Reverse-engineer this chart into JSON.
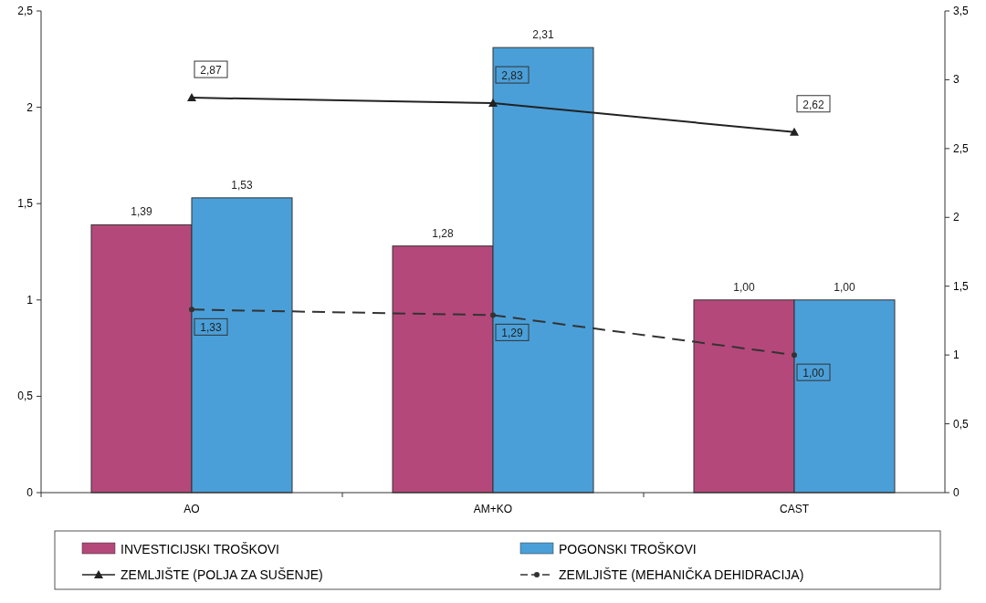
{
  "chart_data": {
    "type": "bar",
    "categories": [
      "AO",
      "AM+KO",
      "CAST"
    ],
    "series": [
      {
        "name": "INVESTICIJSKI TROŠKOVI",
        "color": "#b5487a",
        "values": [
          1.39,
          1.28,
          1.0
        ],
        "value_labels": [
          "1,39",
          "1,28",
          "1,00"
        ]
      },
      {
        "name": "POGONSKI TROŠKOVI",
        "color": "#4a9fd8",
        "values": [
          1.53,
          2.31,
          1.0
        ],
        "value_labels": [
          "1,53",
          "2,31",
          "1,00"
        ]
      },
      {
        "name": "ZEMLJIŠTE (POLJA ZA SUŠENJE)",
        "type": "line",
        "axis": "y2",
        "color": "#222222",
        "marker": "triangle",
        "line_style": "solid",
        "values": [
          2.87,
          2.83,
          2.62
        ],
        "value_labels": [
          "2,87",
          "2,83",
          "2,62"
        ]
      },
      {
        "name": "ZEMLJIŠTE (MEHANIČKA DEHIDRACIJA)",
        "type": "line",
        "axis": "y2",
        "color": "#333333",
        "marker": "circle",
        "line_style": "dashed",
        "values": [
          1.33,
          1.29,
          1.0
        ],
        "value_labels": [
          "1,33",
          "1,29",
          "1,00"
        ]
      }
    ],
    "ylim": [
      0,
      2.5
    ],
    "yticks": [
      0,
      {
        "value": 0.5,
        "label": "0,5"
      },
      1,
      {
        "value": 1.5,
        "label": "1,5"
      },
      2,
      {
        "value": 2.5,
        "label": "2,5"
      }
    ],
    "y2lim": [
      0,
      3.5
    ],
    "y2ticks": [
      0,
      {
        "value": 0.5,
        "label": "0,5"
      },
      1,
      {
        "value": 1.5,
        "label": "1,5"
      },
      2,
      {
        "value": 2.5,
        "label": "2,5"
      },
      3,
      {
        "value": 3.5,
        "label": "3,5"
      }
    ],
    "legend": "bottom"
  }
}
